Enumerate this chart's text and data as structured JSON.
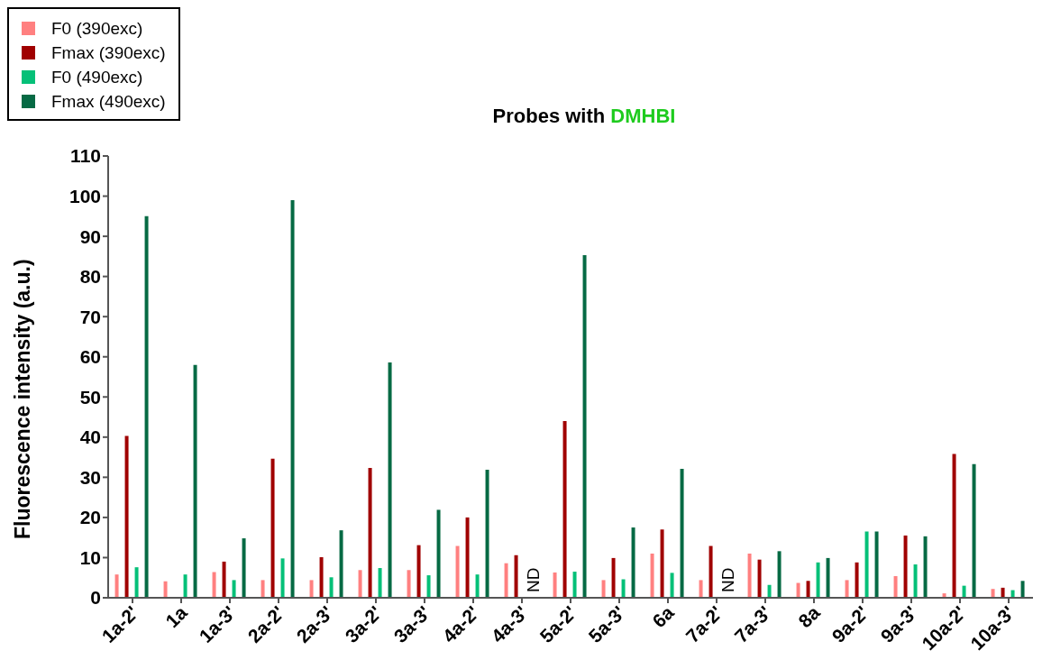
{
  "chart_data": {
    "type": "bar",
    "title": "Probes with DMHBI",
    "ylabel": "Fluorescence intensity (a.u.)",
    "categories": [
      "1a-2'",
      "1a",
      "1a-3'",
      "2a-2'",
      "2a-3'",
      "3a-2'",
      "3a-3'",
      "4a-2'",
      "4a-3'",
      "5a-2'",
      "5a-3'",
      "6a",
      "7a-2'",
      "7a-3'",
      "8a",
      "9a-2'",
      "9a-3'",
      "10a-2'",
      "10a-3'"
    ],
    "series": [
      {
        "name": "F0 (390exc)",
        "color": "#ff8080",
        "values": [
          5.8,
          4.1,
          6.4,
          4.4,
          4.4,
          6.9,
          6.9,
          12.9,
          8.6,
          6.3,
          4.4,
          11,
          4.4,
          11,
          3.7,
          4.4,
          5.4,
          1.1,
          2.2
        ]
      },
      {
        "name": "Fmax (390exc)",
        "color": "#a00000",
        "values": [
          40.3,
          null,
          9,
          34.6,
          10.1,
          32.3,
          13.1,
          20,
          10.6,
          44,
          9.9,
          17,
          12.9,
          9.5,
          4.2,
          8.8,
          15.5,
          35.8,
          2.5
        ]
      },
      {
        "name": "F0 (490exc)",
        "color": "#05c078",
        "values": [
          7.6,
          5.8,
          4.4,
          9.8,
          5.1,
          7.4,
          5.6,
          5.8,
          null,
          6.5,
          4.6,
          6.2,
          null,
          3.2,
          8.8,
          16.5,
          8.3,
          3,
          1.9
        ]
      },
      {
        "name": "Fmax (490exc)",
        "color": "#066a44",
        "values": [
          95,
          58,
          14.8,
          99,
          16.8,
          58.6,
          21.9,
          31.9,
          null,
          85.3,
          17.5,
          32.1,
          null,
          11.6,
          9.9,
          16.5,
          15.3,
          33.3,
          4.2
        ]
      }
    ],
    "annotations": [
      {
        "text": "ND",
        "x": "4a-3'",
        "y": 0
      },
      {
        "text": "ND",
        "x": "7a-2'",
        "y": 0
      }
    ],
    "ylim": [
      0,
      110
    ],
    "yticks": [
      0,
      10,
      20,
      30,
      40,
      50,
      60,
      70,
      80,
      90,
      100,
      110
    ],
    "grid": false,
    "legend": "top left"
  }
}
